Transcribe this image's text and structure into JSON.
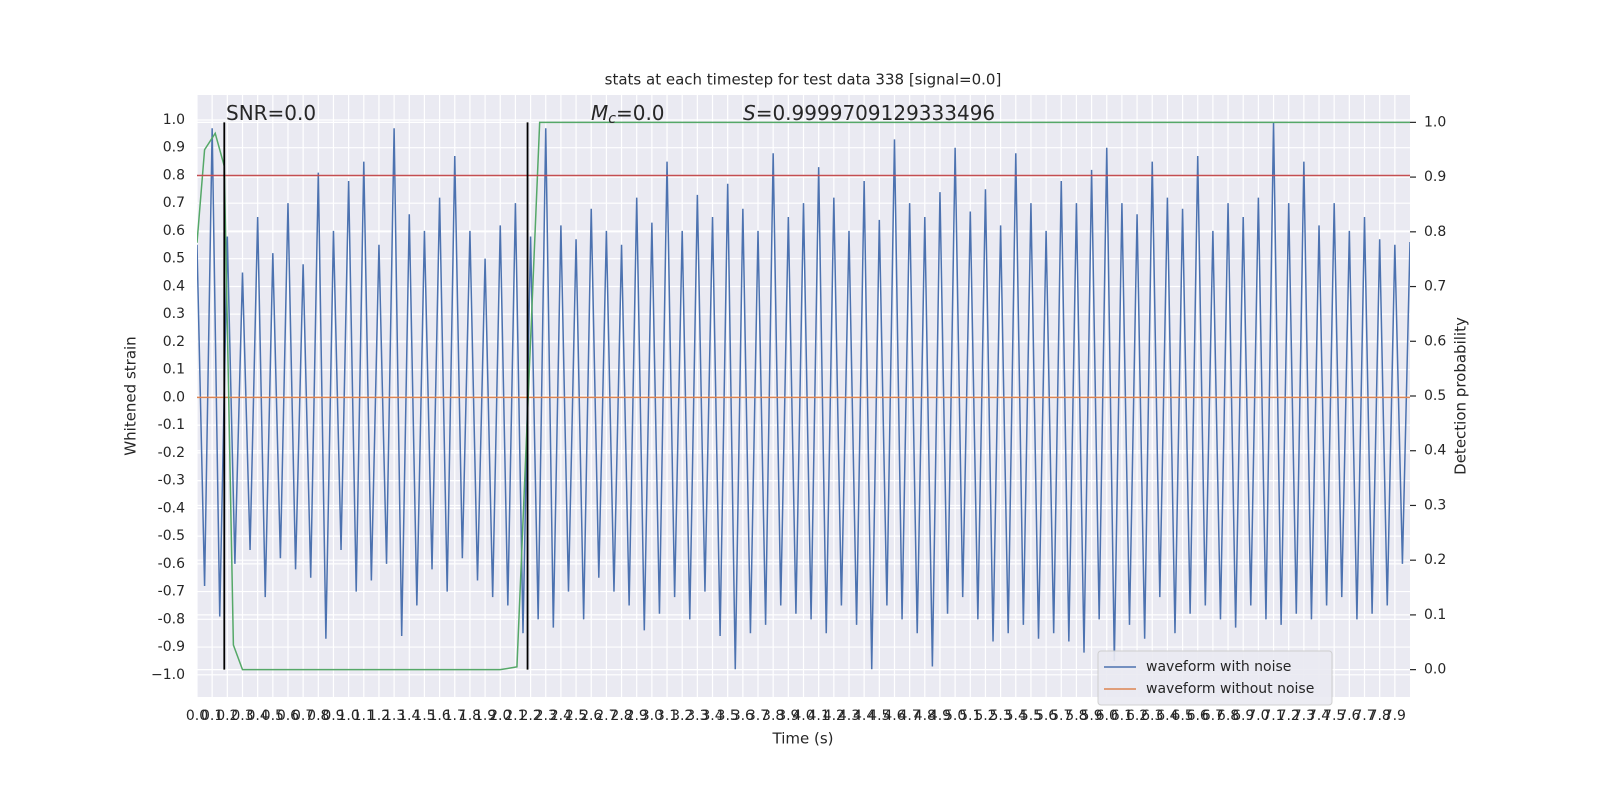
{
  "chart_data": {
    "type": "line",
    "title": "stats at each timestep for test data 338 [signal=0.0]",
    "xlabel": "Time (s)",
    "ylabel": "Whitened strain",
    "y2label": "Detection probability",
    "annotations": [
      {
        "text": "SNR=0.0"
      },
      {
        "base": "M",
        "sub": "c",
        "text": "=0.0"
      },
      {
        "base": "S",
        "text": "=0.9999709129333496"
      }
    ],
    "series": [
      {
        "name": "waveform with noise",
        "color": "#4c72b0",
        "x": [
          0,
          0.05,
          0.1,
          0.15,
          0.2,
          0.25,
          0.3,
          0.35,
          0.4,
          0.45,
          0.5,
          0.55,
          0.6,
          0.65,
          0.7,
          0.75,
          0.8,
          0.85,
          0.9,
          0.95,
          1,
          1.05,
          1.1,
          1.15,
          1.2,
          1.25,
          1.3,
          1.35,
          1.4,
          1.45,
          1.5,
          1.55,
          1.6,
          1.65,
          1.7,
          1.75,
          1.8,
          1.85,
          1.9,
          1.95,
          2,
          2.05,
          2.1,
          2.15,
          2.2,
          2.25,
          2.3,
          2.35,
          2.4,
          2.45,
          2.5,
          2.55,
          2.6,
          2.65,
          2.7,
          2.75,
          2.8,
          2.85,
          2.9,
          2.95,
          3,
          3.05,
          3.1,
          3.15,
          3.2,
          3.25,
          3.3,
          3.35,
          3.4,
          3.45,
          3.5,
          3.55,
          3.6,
          3.65,
          3.7,
          3.75,
          3.8,
          3.85,
          3.9,
          3.95,
          4,
          4.05,
          4.1,
          4.15,
          4.2,
          4.25,
          4.3,
          4.35,
          4.4,
          4.45,
          4.5,
          4.55,
          4.6,
          4.65,
          4.7,
          4.75,
          4.8,
          4.85,
          4.9,
          4.95,
          5,
          5.05,
          5.1,
          5.15,
          5.2,
          5.25,
          5.3,
          5.35,
          5.4,
          5.45,
          5.5,
          5.55,
          5.6,
          5.65,
          5.7,
          5.75,
          5.8,
          5.85,
          5.9,
          5.95,
          6,
          6.05,
          6.1,
          6.15,
          6.2,
          6.25,
          6.3,
          6.35,
          6.4,
          6.45,
          6.5,
          6.55,
          6.6,
          6.65,
          6.7,
          6.75,
          6.8,
          6.85,
          6.9,
          6.95,
          7,
          7.05,
          7.1,
          7.15,
          7.2,
          7.25,
          7.3,
          7.35,
          7.4,
          7.45,
          7.5,
          7.55,
          7.6,
          7.65,
          7.7,
          7.75,
          7.8,
          7.85,
          7.9,
          7.95,
          8
        ],
        "values": [
          0.55,
          -0.68,
          0.97,
          -0.79,
          0.58,
          -0.6,
          0.45,
          -0.55,
          0.65,
          -0.72,
          0.52,
          -0.58,
          0.7,
          -0.62,
          0.48,
          -0.65,
          0.81,
          -0.87,
          0.6,
          -0.55,
          0.78,
          -0.7,
          0.85,
          -0.66,
          0.55,
          -0.6,
          0.97,
          -0.86,
          0.66,
          -0.75,
          0.6,
          -0.62,
          0.72,
          -0.7,
          0.87,
          -0.58,
          0.6,
          -0.66,
          0.5,
          -0.72,
          0.62,
          -0.75,
          0.7,
          -0.85,
          0.58,
          -0.8,
          0.97,
          -0.83,
          0.62,
          -0.7,
          0.57,
          -0.8,
          0.68,
          -0.65,
          0.6,
          -0.7,
          0.55,
          -0.75,
          0.72,
          -0.84,
          0.63,
          -0.78,
          0.85,
          -0.72,
          0.6,
          -0.8,
          0.73,
          -0.7,
          0.65,
          -0.86,
          0.77,
          -0.98,
          0.68,
          -0.85,
          0.6,
          -0.82,
          0.88,
          -0.75,
          0.65,
          -0.78,
          0.7,
          -0.8,
          0.83,
          -0.85,
          0.72,
          -0.75,
          0.6,
          -0.82,
          0.78,
          -0.98,
          0.64,
          -0.75,
          0.93,
          -0.8,
          0.7,
          -0.85,
          0.65,
          -0.97,
          0.74,
          -0.78,
          0.9,
          -0.72,
          0.67,
          -0.8,
          0.75,
          -0.88,
          0.62,
          -0.85,
          0.88,
          -0.82,
          0.7,
          -0.87,
          0.6,
          -0.85,
          0.78,
          -0.88,
          0.7,
          -0.92,
          0.82,
          -0.8,
          0.9,
          -0.95,
          0.7,
          -0.82,
          0.66,
          -0.87,
          0.85,
          -0.72,
          0.72,
          -0.85,
          0.68,
          -0.78,
          0.87,
          -0.75,
          0.6,
          -0.8,
          0.7,
          -0.83,
          0.65,
          -0.75,
          0.72,
          -0.8,
          0.99,
          -0.82,
          0.7,
          -0.78,
          0.85,
          -0.8,
          0.62,
          -0.75,
          0.7,
          -0.72,
          0.6,
          -0.8,
          0.65,
          -0.78,
          0.57,
          -0.75,
          0.55,
          -0.6,
          0.56
        ]
      },
      {
        "name": "waveform without noise",
        "color": "#dd8452",
        "x": [
          0,
          8
        ],
        "values": [
          0,
          0
        ]
      },
      {
        "color": "#55a868",
        "axis": "y2",
        "x": [
          0,
          0.05,
          0.12,
          0.18,
          0.24,
          0.3,
          2.0,
          2.11,
          2.26,
          8
        ],
        "values": [
          0.78,
          0.95,
          0.98,
          0.92,
          0.045,
          0,
          0,
          0.005,
          1,
          1
        ]
      }
    ],
    "hline": {
      "y": 0.8,
      "color": "#c44e52"
    },
    "vlines": {
      "x": [
        0.18,
        2.18
      ],
      "ymin": 0,
      "ymax": 1,
      "axis": "y2",
      "color": "#000000"
    },
    "xlim": [
      0,
      8
    ],
    "ylim": [
      -1.08,
      1.09
    ],
    "y2lim": [
      -0.05,
      1.05
    ],
    "xticks": [
      {
        "value": 0,
        "label": "0.0"
      },
      0.1,
      0.2,
      0.3,
      0.4,
      0.5,
      0.6,
      0.7,
      0.8,
      0.9,
      {
        "value": 1,
        "label": "1.0"
      },
      1.1,
      1.2,
      1.3,
      1.4,
      1.5,
      1.6,
      1.7,
      1.8,
      1.9,
      {
        "value": 2,
        "label": "2.0"
      },
      2.1,
      2.2,
      2.3,
      2.4,
      2.5,
      2.6,
      2.7,
      2.8,
      2.9,
      {
        "value": 3,
        "label": "3.0"
      },
      3.1,
      3.2,
      3.3,
      3.4,
      3.5,
      3.6,
      3.7,
      3.8,
      3.9,
      {
        "value": 4,
        "label": "4.0"
      },
      4.1,
      4.2,
      4.3,
      4.4,
      4.5,
      4.6,
      4.7,
      4.8,
      4.9,
      {
        "value": 5,
        "label": "5.0"
      },
      5.1,
      5.2,
      5.3,
      5.4,
      5.5,
      5.6,
      5.7,
      5.8,
      5.9,
      {
        "value": 6,
        "label": "6.0"
      },
      6.1,
      6.2,
      6.3,
      6.4,
      6.5,
      6.6,
      6.7,
      6.8,
      6.9,
      {
        "value": 7,
        "label": "7.0"
      },
      7.1,
      7.2,
      7.3,
      7.4,
      7.5,
      7.6,
      7.7,
      7.8,
      7.9
    ],
    "yticks": [
      {
        "value": -1,
        "label": "−1.0"
      },
      -0.9,
      -0.8,
      -0.7,
      -0.6,
      -0.5,
      -0.4,
      -0.3,
      -0.2,
      -0.1,
      {
        "value": 0,
        "label": "0.0"
      },
      0.1,
      0.2,
      0.3,
      0.4,
      0.5,
      0.6,
      0.7,
      0.8,
      0.9,
      {
        "value": 1,
        "label": "1.0"
      }
    ],
    "y2ticks": [
      {
        "value": 0,
        "label": "0.0"
      },
      0.1,
      0.2,
      0.3,
      0.4,
      0.5,
      0.6,
      0.7,
      0.8,
      0.9,
      {
        "value": 1,
        "label": "1.0"
      }
    ],
    "grid": true,
    "legend": "lower right"
  }
}
